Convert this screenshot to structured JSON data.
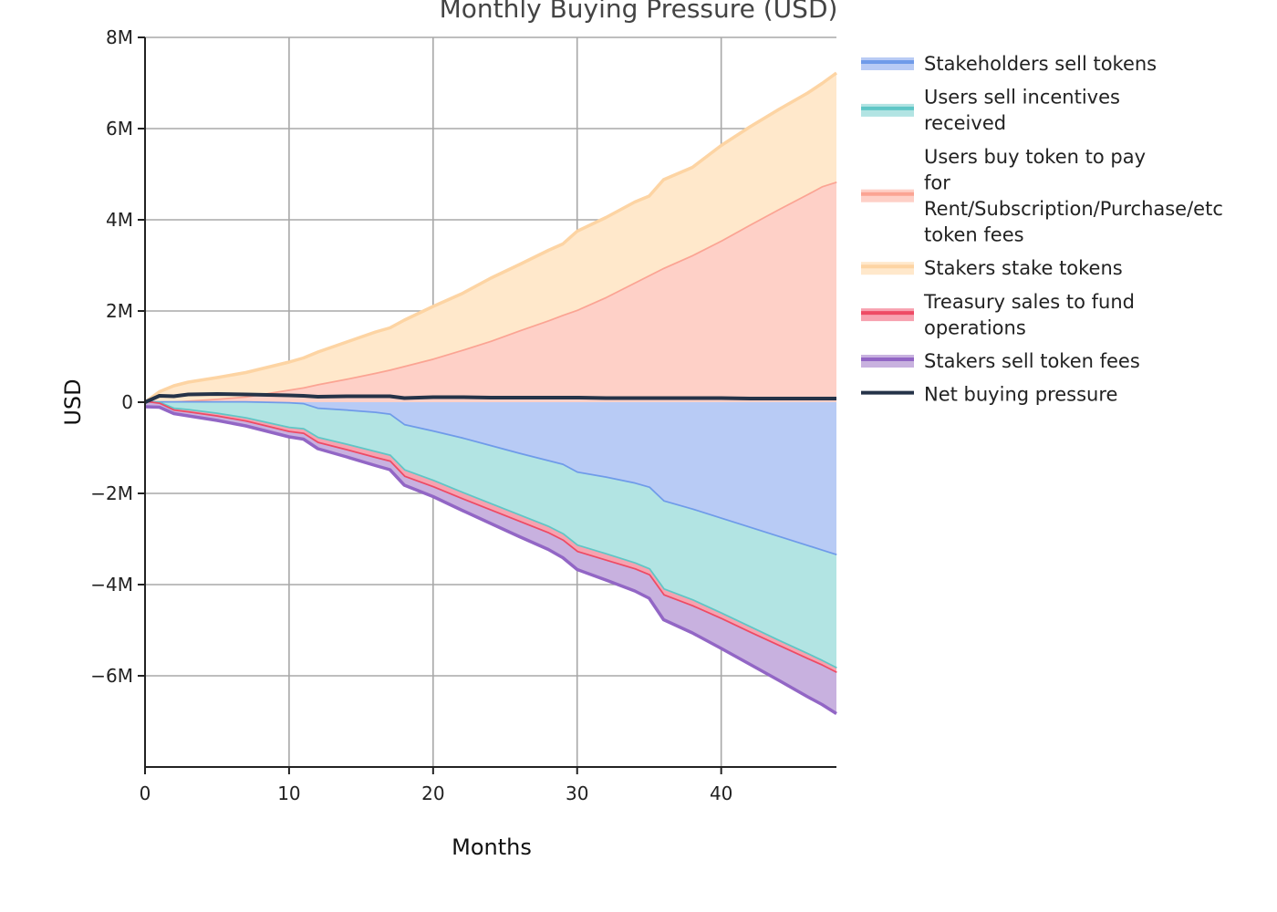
{
  "chart_data": {
    "type": "area",
    "title": "Monthly Buying Pressure (USD)",
    "xlabel": "Months",
    "ylabel": "USD",
    "xlim": [
      0,
      48
    ],
    "ylim": [
      -8000000,
      8000000
    ],
    "grid": true,
    "legend_position": "right",
    "x_ticks": [
      {
        "value": 0,
        "label": "0"
      },
      {
        "value": 10,
        "label": "10"
      },
      {
        "value": 20,
        "label": "20"
      },
      {
        "value": 30,
        "label": "30"
      },
      {
        "value": 40,
        "label": "40"
      }
    ],
    "y_ticks": [
      {
        "value": 8000000,
        "label": "8M"
      },
      {
        "value": 6000000,
        "label": "6M"
      },
      {
        "value": 4000000,
        "label": "4M"
      },
      {
        "value": 2000000,
        "label": "2M"
      },
      {
        "value": 0,
        "label": "0"
      },
      {
        "value": -2000000,
        "label": "−2M"
      },
      {
        "value": -4000000,
        "label": "−4M"
      },
      {
        "value": -6000000,
        "label": "−6M"
      }
    ],
    "x": [
      0,
      1,
      2,
      3,
      5,
      7,
      10,
      11,
      12,
      14,
      16,
      17,
      18,
      20,
      22,
      24,
      26,
      28,
      29,
      30,
      32,
      34,
      35,
      36,
      38,
      40,
      42,
      44,
      46,
      47,
      48
    ],
    "series": [
      {
        "name": "Users buy token to pay for Rent/Subscription/Purchase/etc token fees",
        "kind": "area",
        "stack": "positive",
        "color": "#fba493",
        "fill": "#fed0c7",
        "values": [
          0,
          10000,
          20000,
          40000,
          80000,
          130000,
          280000,
          330000,
          400000,
          520000,
          650000,
          720000,
          800000,
          960000,
          1150000,
          1350000,
          1580000,
          1800000,
          1920000,
          2030000,
          2310000,
          2630000,
          2790000,
          2950000,
          3230000,
          3550000,
          3900000,
          4240000,
          4570000,
          4740000,
          4840000
        ]
      },
      {
        "name": "Stakers stake tokens",
        "kind": "area",
        "stack": "positive",
        "color": "#fdd4a3",
        "fill": "#ffe8cb",
        "values": [
          0,
          220000,
          340000,
          400000,
          460000,
          520000,
          600000,
          640000,
          700000,
          800000,
          890000,
          910000,
          1000000,
          1140000,
          1230000,
          1370000,
          1440000,
          1530000,
          1550000,
          1720000,
          1740000,
          1760000,
          1730000,
          1930000,
          1920000,
          2080000,
          2140000,
          2180000,
          2210000,
          2250000,
          2380000
        ]
      },
      {
        "name": "Stakeholders sell tokens",
        "kind": "area",
        "stack": "negative",
        "color": "#6f9be9",
        "fill": "#b8cbf5",
        "values": [
          0,
          -10000,
          -10000,
          -10000,
          -10000,
          -10000,
          -30000,
          -50000,
          -150000,
          -190000,
          -240000,
          -280000,
          -510000,
          -650000,
          -800000,
          -970000,
          -1140000,
          -1300000,
          -1380000,
          -1550000,
          -1660000,
          -1790000,
          -1880000,
          -2180000,
          -2360000,
          -2560000,
          -2760000,
          -2960000,
          -3160000,
          -3260000,
          -3360000
        ]
      },
      {
        "name": "Users sell incentives received",
        "kind": "area",
        "stack": "negative",
        "color": "#5fc6c6",
        "fill": "#b2e4e3",
        "values": [
          0,
          -10000,
          -140000,
          -170000,
          -250000,
          -350000,
          -540000,
          -550000,
          -640000,
          -750000,
          -860000,
          -900000,
          -990000,
          -1080000,
          -1190000,
          -1270000,
          -1350000,
          -1440000,
          -1520000,
          -1600000,
          -1680000,
          -1750000,
          -1790000,
          -1930000,
          -1990000,
          -2080000,
          -2180000,
          -2280000,
          -2370000,
          -2420000,
          -2480000
        ]
      },
      {
        "name": "Treasury sales to fund operations",
        "kind": "area",
        "stack": "negative",
        "color": "#ee4a64",
        "fill": "#f7a2b0",
        "values": [
          0,
          -20000,
          -40000,
          -50000,
          -60000,
          -70000,
          -90000,
          -100000,
          -110000,
          -120000,
          -130000,
          -130000,
          -140000,
          -140000,
          -140000,
          -140000,
          -140000,
          -140000,
          -140000,
          -140000,
          -140000,
          -130000,
          -130000,
          -130000,
          -130000,
          -120000,
          -120000,
          -110000,
          -110000,
          -100000,
          -100000
        ]
      },
      {
        "name": "Stakers sell token fees",
        "kind": "area",
        "stack": "negative",
        "color": "#9266c5",
        "fill": "#c8b1df",
        "values": [
          -100000,
          -70000,
          -60000,
          -70000,
          -80000,
          -90000,
          -100000,
          -110000,
          -120000,
          -140000,
          -160000,
          -170000,
          -180000,
          -200000,
          -240000,
          -280000,
          -320000,
          -350000,
          -370000,
          -380000,
          -420000,
          -470000,
          -500000,
          -530000,
          -580000,
          -640000,
          -690000,
          -750000,
          -820000,
          -850000,
          -890000
        ]
      },
      {
        "name": "Net buying pressure",
        "kind": "line",
        "color": "#253348",
        "values": [
          0,
          140000,
          130000,
          170000,
          180000,
          170000,
          150000,
          140000,
          120000,
          130000,
          130000,
          130000,
          90000,
          110000,
          110000,
          100000,
          100000,
          100000,
          100000,
          100000,
          90000,
          90000,
          90000,
          90000,
          90000,
          90000,
          80000,
          80000,
          80000,
          80000,
          80000
        ]
      }
    ],
    "legend": [
      {
        "lines": [
          "Stakeholders sell tokens"
        ],
        "color": "#6f9be9",
        "fill": "#b8cbf5"
      },
      {
        "lines": [
          "Users sell incentives",
          "received"
        ],
        "color": "#5fc6c6",
        "fill": "#b2e4e3"
      },
      {
        "lines": [
          "Users buy token to pay",
          "for",
          "Rent/Subscription/Purchase/etc",
          "token fees"
        ],
        "color": "#fba493",
        "fill": "#fed0c7"
      },
      {
        "lines": [
          "Stakers stake tokens"
        ],
        "color": "#fdd4a3",
        "fill": "#ffe8cb"
      },
      {
        "lines": [
          "Treasury sales to fund",
          "operations"
        ],
        "color": "#ee4a64",
        "fill": "#f7a2b0"
      },
      {
        "lines": [
          "Stakers sell token fees"
        ],
        "color": "#9266c5",
        "fill": "#c8b1df"
      },
      {
        "lines": [
          "Net buying pressure"
        ],
        "color": "#253348",
        "fill": null
      }
    ]
  }
}
